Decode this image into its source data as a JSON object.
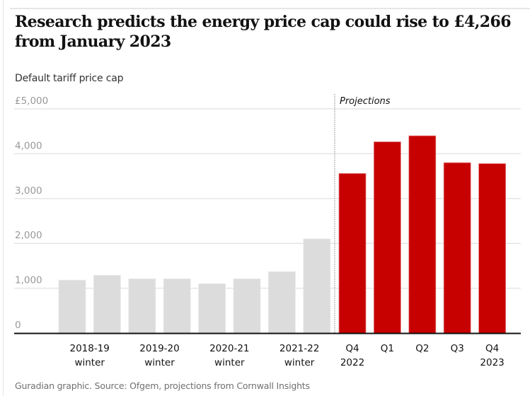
{
  "chart_data": {
    "type": "bar",
    "title": "Research predicts the energy price cap could rise to £4,266 from January 2023",
    "subtitle": "Default tariff price cap",
    "xlabel": "",
    "ylabel": "Default tariff price cap",
    "ylim": [
      0,
      5000
    ],
    "yticks": [
      0,
      1000,
      2000,
      3000,
      4000,
      5000
    ],
    "ytick_labels": [
      "0",
      "1,000",
      "2,000",
      "3,000",
      "4,000",
      "£5,000"
    ],
    "grid": true,
    "annotation": "Projections",
    "colors": {
      "historical": "#dcdcdc",
      "projection": "#c70000",
      "gridline": "#e6e6e6",
      "baseline": "#121212"
    },
    "bars": [
      {
        "value": 1180,
        "group": "historical"
      },
      {
        "value": 1290,
        "group": "historical"
      },
      {
        "value": 1210,
        "group": "historical"
      },
      {
        "value": 1210,
        "group": "historical"
      },
      {
        "value": 1100,
        "group": "historical"
      },
      {
        "value": 1210,
        "group": "historical"
      },
      {
        "value": 1370,
        "group": "historical"
      },
      {
        "value": 2100,
        "group": "historical"
      },
      {
        "value": 3560,
        "group": "projection"
      },
      {
        "value": 4266,
        "group": "projection"
      },
      {
        "value": 4400,
        "group": "projection"
      },
      {
        "value": 3800,
        "group": "projection"
      },
      {
        "value": 3780,
        "group": "projection"
      }
    ],
    "x_labels": [
      {
        "lines": [
          "2018-19",
          "winter"
        ]
      },
      {
        "lines": [
          "2019-20",
          "winter"
        ]
      },
      {
        "lines": [
          "2020-21",
          "winter"
        ]
      },
      {
        "lines": [
          "2021-22",
          "winter"
        ]
      },
      {
        "lines": [
          "Q4",
          "2022"
        ]
      },
      {
        "lines": [
          "Q1",
          ""
        ]
      },
      {
        "lines": [
          "Q2",
          ""
        ]
      },
      {
        "lines": [
          "Q3",
          ""
        ]
      },
      {
        "lines": [
          "Q4",
          "2023"
        ]
      }
    ],
    "source": "Guradian graphic. Source: Ofgem, projections from Cornwall Insights"
  }
}
